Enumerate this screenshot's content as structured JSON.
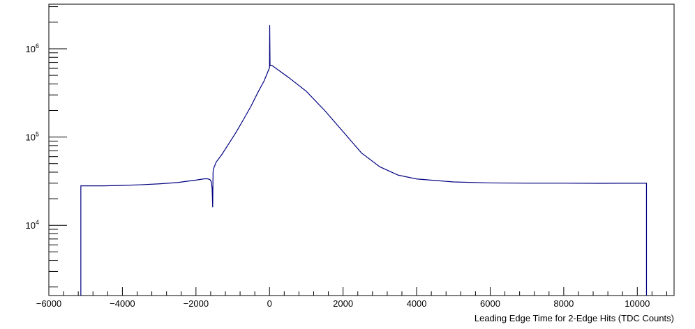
{
  "chart_data": {
    "type": "line",
    "title": "",
    "xlabel": "Leading Edge Time for 2-Edge Hits (TDC Counts)",
    "ylabel": "",
    "xlim": [
      -6000,
      11000
    ],
    "ylim": [
      1600,
      3200000
    ],
    "yscale": "log",
    "grid": false,
    "line_color": "#000080",
    "x_ticks": [
      -6000,
      -4000,
      -2000,
      0,
      2000,
      4000,
      6000,
      8000,
      10000
    ],
    "x_tick_labels": [
      "−6000",
      "−4000",
      "−2000",
      "0",
      "2000",
      "4000",
      "6000",
      "8000",
      "10000"
    ],
    "y_ticks": [
      {
        "value": 10000,
        "base": "10",
        "exp": "4"
      },
      {
        "value": 100000,
        "base": "10",
        "exp": "5"
      },
      {
        "value": 1000000,
        "base": "10",
        "exp": "6"
      }
    ],
    "series": [
      {
        "points": [
          [
            -5130,
            1600
          ],
          [
            -5130,
            28000
          ],
          [
            -4500,
            28000
          ],
          [
            -4000,
            28300
          ],
          [
            -3500,
            28800
          ],
          [
            -3000,
            29500
          ],
          [
            -2500,
            30500
          ],
          [
            -2200,
            31700
          ],
          [
            -2000,
            32500
          ],
          [
            -1800,
            33500
          ],
          [
            -1700,
            33700
          ],
          [
            -1620,
            33000
          ],
          [
            -1580,
            31000
          ],
          [
            -1560,
            26000
          ],
          [
            -1545,
            16000
          ],
          [
            -1535,
            40000
          ],
          [
            -1520,
            44000
          ],
          [
            -1450,
            52000
          ],
          [
            -1300,
            63000
          ],
          [
            -1100,
            85000
          ],
          [
            -900,
            115000
          ],
          [
            -700,
            160000
          ],
          [
            -500,
            225000
          ],
          [
            -300,
            330000
          ],
          [
            -150,
            430000
          ],
          [
            -60,
            530000
          ],
          [
            0,
            610000
          ],
          [
            5,
            1850000
          ],
          [
            15,
            640000
          ],
          [
            60,
            650000
          ],
          [
            200,
            590000
          ],
          [
            500,
            480000
          ],
          [
            1000,
            330000
          ],
          [
            1500,
            200000
          ],
          [
            2000,
            115000
          ],
          [
            2500,
            66000
          ],
          [
            3000,
            46000
          ],
          [
            3500,
            37000
          ],
          [
            4000,
            33500
          ],
          [
            5000,
            31000
          ],
          [
            6000,
            30200
          ],
          [
            7000,
            30000
          ],
          [
            8000,
            30000
          ],
          [
            9000,
            29900
          ],
          [
            10250,
            30000
          ],
          [
            10250,
            1600
          ]
        ]
      }
    ]
  }
}
